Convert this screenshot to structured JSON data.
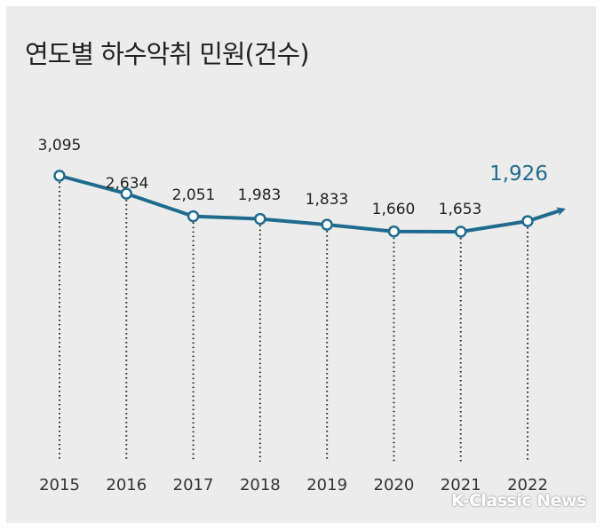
{
  "chart_data": {
    "type": "line",
    "title": "연도별 하수악취 민원(건수)",
    "categories": [
      "2015",
      "2016",
      "2017",
      "2018",
      "2019",
      "2020",
      "2021",
      "2022"
    ],
    "values": [
      3095,
      2634,
      2051,
      1983,
      1833,
      1660,
      1653,
      1926
    ],
    "value_labels": [
      "3,095",
      "2,634",
      "2,051",
      "1,983",
      "1,833",
      "1,660",
      "1,653",
      "1,926"
    ],
    "highlight_index": 7,
    "colors": {
      "line": "#1f6b8f",
      "highlight_label": "#1f6b8f",
      "label": "#222222",
      "background": "#ececec"
    },
    "grid": false,
    "legend": "none"
  },
  "watermark": "K-Classic News"
}
